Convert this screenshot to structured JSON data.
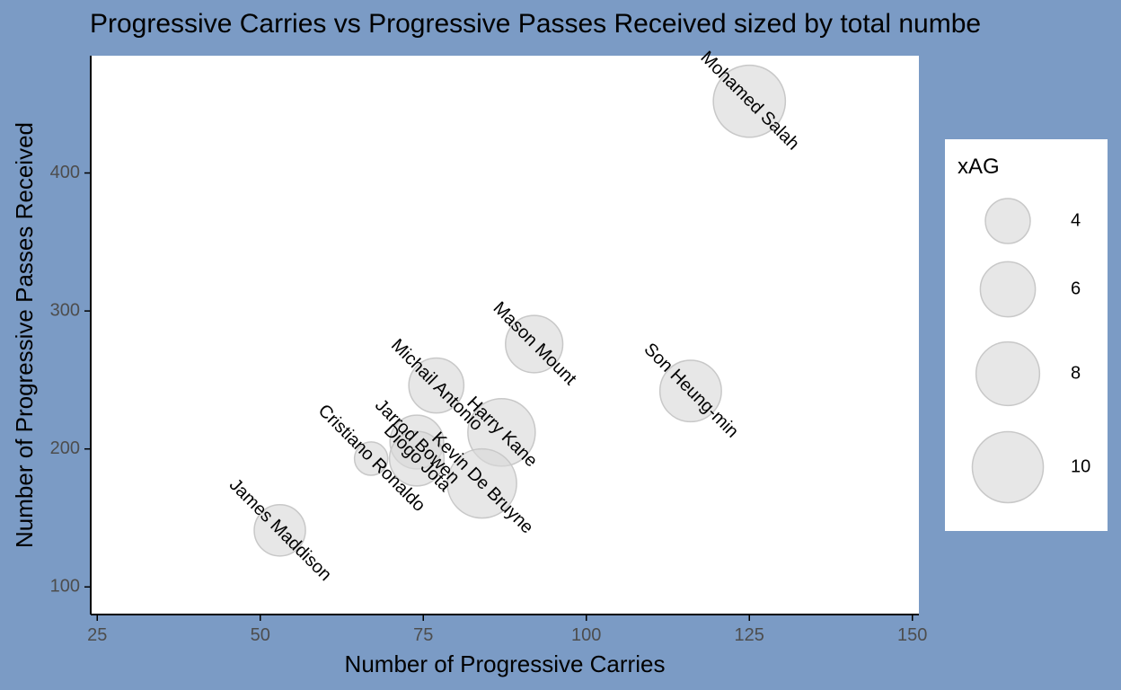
{
  "chart_data": {
    "type": "scatter",
    "title": "Progressive Carries vs Progressive Passes Received sized by total numbe",
    "xlabel": "Number of Progressive Carries",
    "ylabel": "Number of Progressive Passes Received",
    "xlim": [
      24,
      151
    ],
    "ylim": [
      80,
      485
    ],
    "x_ticks": [
      25,
      50,
      75,
      100,
      125,
      150
    ],
    "y_ticks": [
      100,
      200,
      300,
      400
    ],
    "grid": false,
    "points": [
      {
        "label": "Mohamed Salah",
        "x": 125,
        "y": 452,
        "size": 10.3
      },
      {
        "label": "Mason Mount",
        "x": 92,
        "y": 276,
        "size": 6.5
      },
      {
        "label": "Son Heung-min",
        "x": 116,
        "y": 242,
        "size": 7.5
      },
      {
        "label": "Michail Antonio",
        "x": 77,
        "y": 246,
        "size": 6.0
      },
      {
        "label": "Harry Kane",
        "x": 87,
        "y": 212,
        "size": 9.0
      },
      {
        "label": "Kevin De Bruyne",
        "x": 84,
        "y": 175,
        "size": 9.5
      },
      {
        "label": "Jarrod Bowen",
        "x": 74,
        "y": 205,
        "size": 5.7
      },
      {
        "label": "Diogo Jota",
        "x": 74,
        "y": 193,
        "size": 5.9
      },
      {
        "label": "Cristiano Ronaldo",
        "x": 67,
        "y": 193,
        "size": 2.2
      },
      {
        "label": "James Maddison",
        "x": 53,
        "y": 141,
        "size": 5.2
      }
    ],
    "legend": {
      "title": "xAG",
      "placement": "right",
      "entries": [
        {
          "label": "4",
          "size": 4
        },
        {
          "label": "6",
          "size": 6
        },
        {
          "label": "8",
          "size": 8
        },
        {
          "label": "10",
          "size": 10
        }
      ]
    },
    "colors": {
      "background": "#7b9bc5",
      "panel": "#ffffff",
      "point_fill": "#d9d9d9",
      "point_stroke": "#c8c8c8"
    }
  }
}
